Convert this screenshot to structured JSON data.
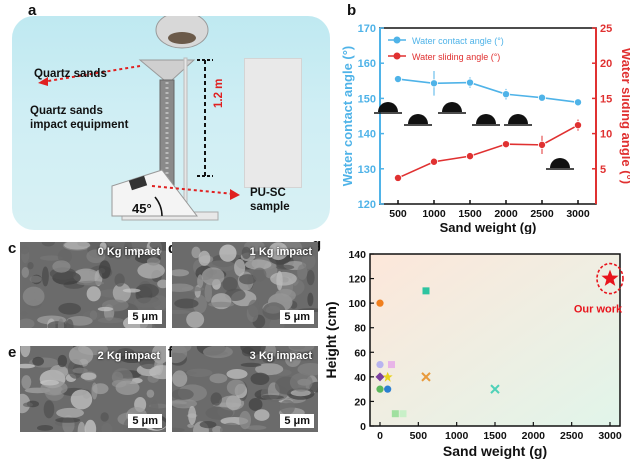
{
  "panels": {
    "a": "a",
    "b": "b",
    "c": "c",
    "d": "d",
    "e": "e",
    "f": "f",
    "g": "g"
  },
  "panel_a": {
    "quartz_sands": "Quartz sands",
    "equipment_line1": "Quartz sands",
    "equipment_line2": "impact equipment",
    "height": "1.2 m",
    "angle": "45°",
    "sample_line1": "PU-SC",
    "sample_line2": "sample"
  },
  "sem": [
    {
      "caption": "0 Kg impact",
      "scale": "5 μm"
    },
    {
      "caption": "1 Kg impact",
      "scale": "5 μm"
    },
    {
      "caption": "2 Kg impact",
      "scale": "5 μm"
    },
    {
      "caption": "3 Kg impact",
      "scale": "5 μm"
    }
  ],
  "colors": {
    "contact": "#4fb3e8",
    "sliding": "#e03131",
    "star": "#e8141c"
  },
  "chart_data": [
    {
      "type": "line",
      "xlabel": "Sand weight (g)",
      "x": [
        500,
        1000,
        1500,
        2000,
        2500,
        3000
      ],
      "xticks": [
        "500",
        "1000",
        "1500",
        "2000",
        "2500",
        "3000"
      ],
      "y_left": {
        "label": "Water contact angle (°)",
        "lim": [
          120,
          170
        ],
        "ticks": [
          120,
          130,
          140,
          150,
          160,
          170
        ]
      },
      "y_right": {
        "label": "Water sliding angle (°)",
        "lim": [
          0,
          25
        ],
        "ticks": [
          5,
          10,
          15,
          20,
          25
        ]
      },
      "series": [
        {
          "name": "Water contact angle (°)",
          "axis": "left",
          "values": [
            155.5,
            154.3,
            154.5,
            151.2,
            150.2,
            148.9
          ],
          "errors": [
            1.0,
            3.5,
            1.5,
            1.5,
            1.0,
            0.5
          ]
        },
        {
          "name": "Water sliding angle (°)",
          "axis": "right",
          "values": [
            3.7,
            6.0,
            6.8,
            8.5,
            8.4,
            11.2
          ],
          "errors": [
            0.3,
            0.3,
            0.3,
            0.4,
            1.3,
            0.8
          ]
        }
      ],
      "legend": "top-left"
    },
    {
      "type": "scatter",
      "xlabel": "Sand weight (g)",
      "ylabel": "Height (cm)",
      "xlim": [
        0,
        3000
      ],
      "ylim": [
        0,
        140
      ],
      "xticks": [
        0,
        500,
        1000,
        1500,
        2000,
        2500,
        3000
      ],
      "yticks": [
        0,
        20,
        40,
        60,
        80,
        100,
        120,
        140
      ],
      "points": [
        {
          "x": 0,
          "y": 100,
          "marker": "circle",
          "color": "#f07f1e"
        },
        {
          "x": 600,
          "y": 110,
          "marker": "square",
          "color": "#2ec4a0"
        },
        {
          "x": 0,
          "y": 50,
          "marker": "circle",
          "color": "#b8b4f0"
        },
        {
          "x": 150,
          "y": 50,
          "marker": "square",
          "color": "#e8b4e8"
        },
        {
          "x": 0,
          "y": 40,
          "marker": "diamond",
          "color": "#7b3fa0"
        },
        {
          "x": 100,
          "y": 40,
          "marker": "star",
          "color": "#e8d21e"
        },
        {
          "x": 600,
          "y": 40,
          "marker": "cross",
          "color": "#e89a3c"
        },
        {
          "x": 0,
          "y": 30,
          "marker": "circle",
          "color": "#5cb85c"
        },
        {
          "x": 100,
          "y": 30,
          "marker": "circle",
          "color": "#2b7fd1"
        },
        {
          "x": 1500,
          "y": 30,
          "marker": "cross",
          "color": "#4fd1b8"
        },
        {
          "x": 200,
          "y": 10,
          "marker": "square",
          "color": "#a0e0a0"
        },
        {
          "x": 300,
          "y": 10,
          "marker": "square",
          "color": "#c8f0c8"
        }
      ],
      "highlight": {
        "x": 3000,
        "y": 120,
        "label": "Our work"
      }
    }
  ]
}
